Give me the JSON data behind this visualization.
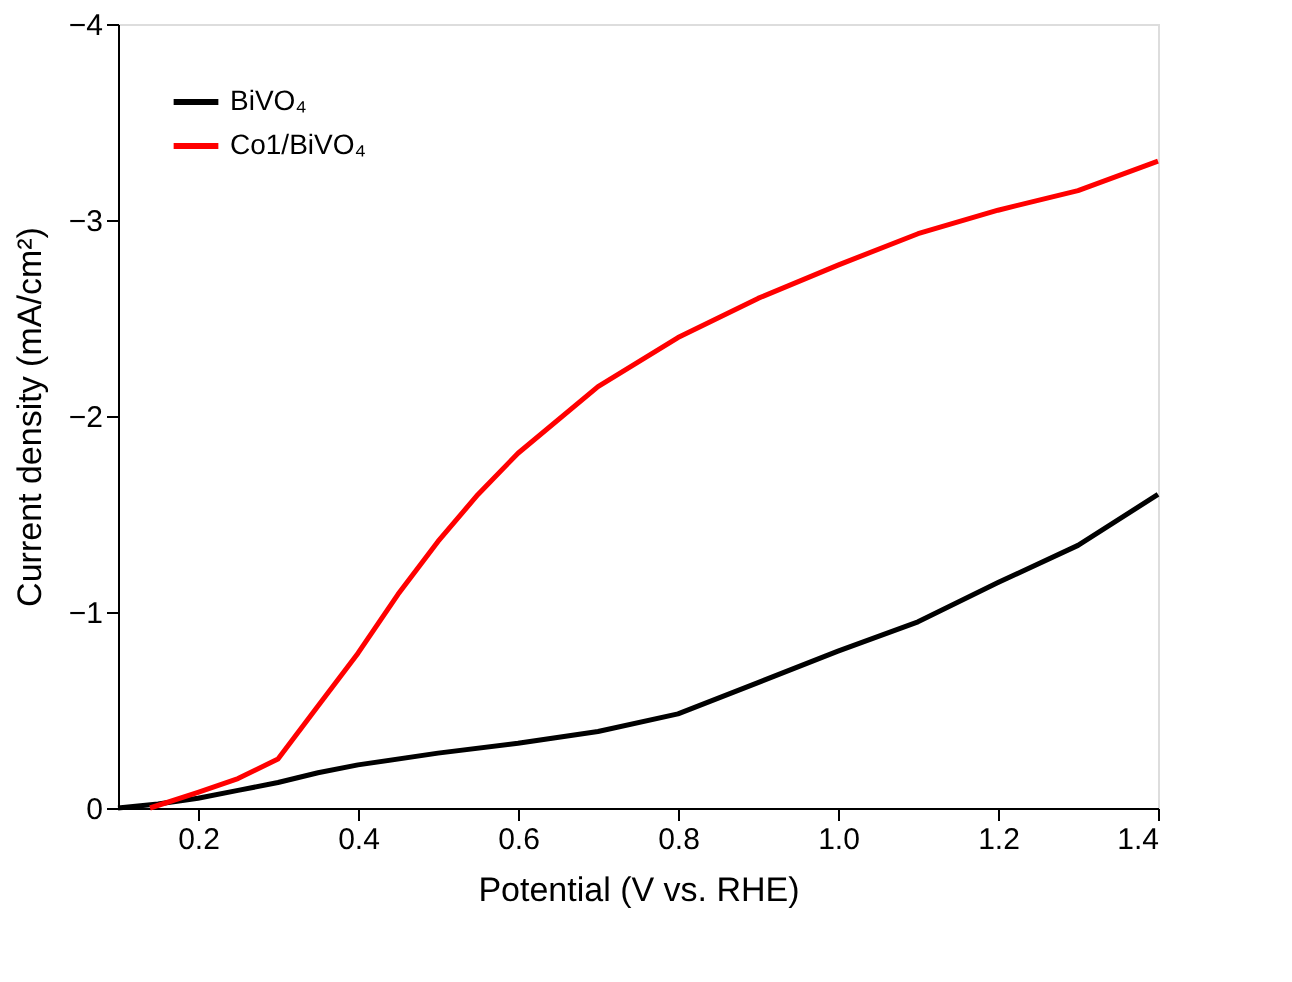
{
  "chart_data": {
    "type": "line",
    "xlabel": "Potential (V vs. RHE)",
    "ylabel": "Current density (mA/cm²)",
    "xlim": [
      0.1,
      1.4
    ],
    "xticks": [
      0.2,
      0.4,
      0.6,
      0.8,
      {
        "value": 1,
        "label": "1.0"
      },
      1.2,
      1.4
    ],
    "ylim": [
      0,
      -4
    ],
    "yticks": [
      0,
      -1,
      -2,
      -3,
      -4
    ],
    "grid": false,
    "legend": "top left",
    "marker": "none",
    "line_style": "solid",
    "series": [
      {
        "name": "BiVO₄",
        "color": "#000000",
        "x": [
          0.1,
          0.15,
          0.2,
          0.25,
          0.3,
          0.35,
          0.4,
          0.5,
          0.6,
          0.7,
          0.8,
          0.9,
          1.0,
          1.1,
          1.2,
          1.3,
          1.4
        ],
        "values": [
          0,
          -0.02,
          -0.05,
          -0.09,
          -0.13,
          -0.18,
          -0.22,
          -0.28,
          -0.33,
          -0.39,
          -0.48,
          -0.64,
          -0.8,
          -0.95,
          -1.15,
          -1.34,
          -1.6
        ]
      },
      {
        "name": "Co1/BiVO₄",
        "color": "#ff0000",
        "x": [
          0.14,
          0.2,
          0.25,
          0.3,
          0.35,
          0.4,
          0.45,
          0.5,
          0.55,
          0.6,
          0.7,
          0.8,
          0.9,
          1.0,
          1.1,
          1.2,
          1.3,
          1.4
        ],
        "values": [
          0,
          -0.08,
          -0.15,
          -0.25,
          -0.52,
          -0.79,
          -1.09,
          -1.36,
          -1.6,
          -1.81,
          -2.15,
          -2.4,
          -2.6,
          -2.77,
          -2.93,
          -3.05,
          -3.15,
          -3.3
        ]
      }
    ]
  }
}
